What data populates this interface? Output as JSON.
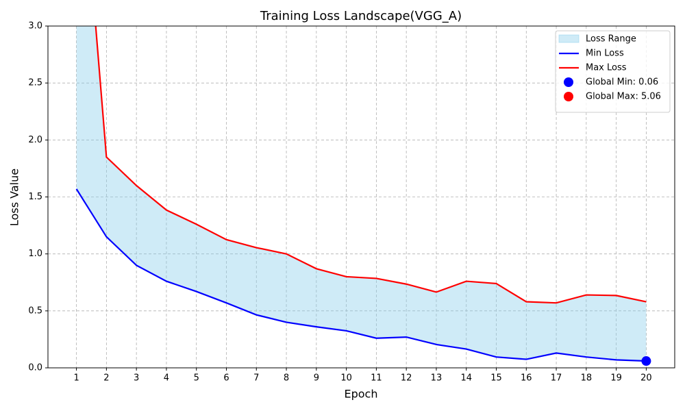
{
  "chart_data": {
    "type": "line",
    "title": "Training Loss Landscape(VGG_A)",
    "x_label": "Epoch",
    "y_label": "Loss Value",
    "x": [
      1,
      2,
      3,
      4,
      5,
      6,
      7,
      8,
      9,
      10,
      11,
      12,
      13,
      14,
      15,
      16,
      17,
      18,
      19,
      20
    ],
    "series": [
      {
        "name": "Min Loss",
        "color": "#0000ff",
        "values": [
          1.57,
          1.15,
          0.9,
          0.76,
          0.67,
          0.57,
          0.465,
          0.4,
          0.36,
          0.325,
          0.26,
          0.27,
          0.205,
          0.165,
          0.095,
          0.075,
          0.13,
          0.095,
          0.07,
          0.06
        ]
      },
      {
        "name": "Max Loss",
        "color": "#ff0000",
        "values": [
          5.06,
          1.85,
          1.6,
          1.385,
          1.26,
          1.125,
          1.055,
          1.0,
          0.87,
          0.8,
          0.785,
          0.735,
          0.665,
          0.76,
          0.74,
          0.58,
          0.57,
          0.64,
          0.635,
          0.58
        ]
      }
    ],
    "fill": {
      "name": "Loss Range",
      "color": "#87ceeb"
    },
    "points": [
      {
        "name": "Global Min: 0.06",
        "color": "#0000ff",
        "x": 20,
        "y": 0.06
      },
      {
        "name": "Global Max: 5.06",
        "color": "#ff0000",
        "x": 1,
        "y": 5.06
      }
    ],
    "xlim": [
      0.05,
      20.95
    ],
    "xticks": [
      1,
      2,
      3,
      4,
      5,
      6,
      7,
      8,
      9,
      10,
      11,
      12,
      13,
      14,
      15,
      16,
      17,
      18,
      19,
      20
    ],
    "ylim": [
      0,
      3
    ],
    "yticks": [
      {
        "value": 0,
        "label": "0.0"
      },
      {
        "value": 0.5,
        "label": "0.5"
      },
      {
        "value": 1,
        "label": "1.0"
      },
      {
        "value": 1.5,
        "label": "1.5"
      },
      {
        "value": 2,
        "label": "2.0"
      },
      {
        "value": 2.5,
        "label": "2.5"
      },
      {
        "value": 3,
        "label": "3.0"
      }
    ],
    "grid": true,
    "legend": "upper right"
  }
}
